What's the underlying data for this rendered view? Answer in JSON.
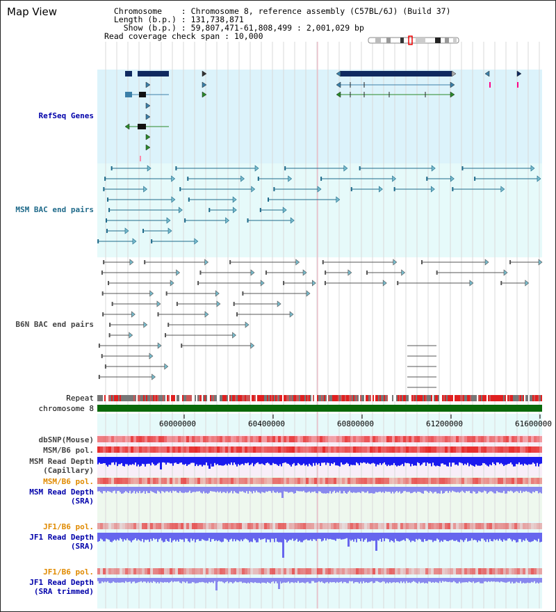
{
  "page": {
    "title": "Map View",
    "info": {
      "chromosome_key": "Chromosome",
      "chromosome_value": "Chromosome 8, reference assembly (C57BL/6J) (Build 37)",
      "length_key": "Length (b.p.)",
      "length_value": "131,738,871",
      "show_key": "Show (b.p.)",
      "show_value": "59,807,471-61,808,499 : 2,001,029 bp",
      "span_key": "Read coverage check span",
      "span_value": "10,000"
    }
  },
  "tracks": {
    "refseq": "RefSeq Genes",
    "msm_bac": "MSM BAC end pairs",
    "b6n_bac": "B6N BAC end pairs",
    "repeat": "Repeat",
    "chromosome": "chromosome 8",
    "dbsnp": "dbSNP(Mouse)",
    "msm_b6_pol": "MSM/B6 pol.",
    "msm_depth_cap_1": "MSM Read Depth",
    "msm_depth_cap_2": "(Capillary)",
    "msm_b6_pol2": "MSM/B6 pol.",
    "msm_depth_sra_1": "MSM Read Depth",
    "msm_depth_sra_2": "(SRA)",
    "jf1_b6_pol": "JF1/B6 pol.",
    "jf1_depth_1": "JF1 Read Depth",
    "jf1_depth_2": "(SRA)",
    "jf1_b6_pol2": "JF1/B6 pol.",
    "jf1_trim_1": "JF1 Read Depth",
    "jf1_trim_2": "(SRA trimmed)"
  },
  "axis": {
    "ticks": [
      "60000000",
      "60400000",
      "60800000",
      "61200000",
      "61600000"
    ]
  },
  "colors": {
    "refseq_bg": "#dcf3fb",
    "msm_bac_bg": "#e6fafa",
    "gene_dark": "#102a60",
    "gene_mid": "#3b7fa8",
    "gene_green": "#2a8a2a",
    "msm_pair": "#1f6a8a",
    "b6n_pair": "#555555",
    "chromosome": "#0a6a0a",
    "depth_blue": "#1a1aee",
    "depth_light": "#6666ee",
    "label_blue": "#0000aa",
    "label_orange": "#e08a00",
    "label_gray": "#444444"
  }
}
